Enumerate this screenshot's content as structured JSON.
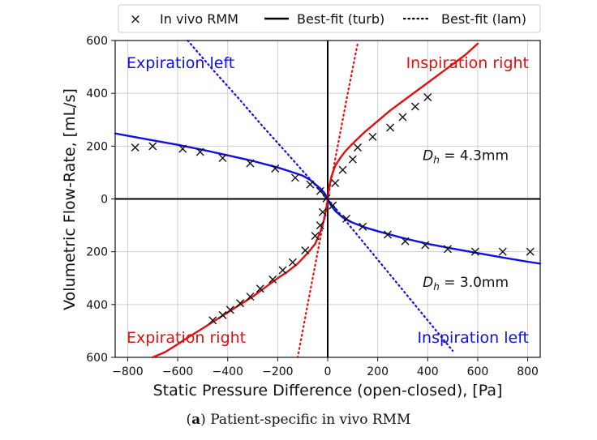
{
  "caption": {
    "letter": "a",
    "text": "Patient-specific in vivo RMM"
  },
  "chart_data": {
    "type": "scatter",
    "xlabel": "Static Pressure Difference (open-closed), [Pa]",
    "ylabel": "Volumetric Flow-Rate, [mL/s]",
    "xlim": [
      -850,
      850
    ],
    "ylim": [
      -600,
      600
    ],
    "grid": true,
    "xticks": [
      -800,
      -600,
      -400,
      -200,
      0,
      200,
      400,
      600,
      800
    ],
    "xtick_labels": [
      "−800",
      "−600",
      "−400",
      "−200",
      "0",
      "200",
      "400",
      "600",
      "800"
    ],
    "yticks": [
      600,
      400,
      200,
      0,
      -200,
      -400,
      -600
    ],
    "ytick_labels": [
      "600",
      "400",
      "200",
      "0",
      "200",
      "400",
      "600"
    ],
    "legend": {
      "position": "top",
      "entries": [
        {
          "marker": "×",
          "label": "In vivo RMM"
        },
        {
          "line": "solid",
          "label": "Best-fit (turb)"
        },
        {
          "line": "dotted",
          "label": "Best-fit (lam)"
        }
      ]
    },
    "colors": {
      "expiration_left": "#1010e0",
      "inspiration_right": "#e01010",
      "inspiration_left": "#1010e0",
      "expiration_right": "#e01010",
      "markers": "#111111"
    },
    "quadrant_labels": [
      {
        "text": "Expiration left",
        "color": "#1010e0",
        "corner": "top-left"
      },
      {
        "text": "Inspiration right",
        "color": "#e01010",
        "corner": "top-right"
      },
      {
        "text": "Expiration right",
        "color": "#e01010",
        "corner": "bottom-left"
      },
      {
        "text": "Inspiration left",
        "color": "#1010e0",
        "corner": "bottom-right"
      }
    ],
    "annotations": [
      {
        "sym": "D",
        "sub": "h",
        "rest": " = 4.3mm",
        "x": 380,
        "y": 165
      },
      {
        "sym": "D",
        "sub": "h",
        "rest": " = 3.0mm",
        "x": 380,
        "y": -315
      }
    ],
    "series": [
      {
        "name": "In vivo RMM (Expiration left / Inspiration right)",
        "kind": "markers",
        "x": [
          -770,
          -700,
          -580,
          -510,
          -420,
          -310,
          -210,
          -130,
          -70,
          -30,
          -5,
          30,
          60,
          100,
          120,
          180,
          250,
          300,
          350,
          400
        ],
        "y": [
          195,
          200,
          190,
          178,
          155,
          135,
          115,
          80,
          55,
          30,
          2,
          60,
          110,
          150,
          195,
          235,
          270,
          310,
          350,
          385
        ]
      },
      {
        "name": "In vivo RMM (Expiration right / Inspiration left)",
        "kind": "markers",
        "x": [
          -460,
          -420,
          -390,
          -350,
          -310,
          -270,
          -220,
          -180,
          -140,
          -90,
          -50,
          -30,
          -20,
          20,
          75,
          140,
          240,
          310,
          390,
          480,
          590,
          700,
          810
        ],
        "y": [
          -460,
          -440,
          -420,
          -395,
          -370,
          -340,
          -305,
          -270,
          -240,
          -195,
          -140,
          -100,
          -50,
          -25,
          -75,
          -105,
          -135,
          -160,
          -175,
          -190,
          -200,
          -200,
          -200
        ]
      },
      {
        "name": "Best-fit (turb) expiration left",
        "kind": "line",
        "style": "solid",
        "color": "#1010e0",
        "x": [
          -850,
          -700,
          -600,
          -500,
          -400,
          -300,
          -200,
          -150,
          -100,
          -70,
          -50,
          -30,
          -15,
          -5,
          0
        ],
        "y": [
          248,
          222,
          205,
          186,
          165,
          144,
          119,
          104,
          88,
          72,
          56,
          40,
          25,
          10,
          0
        ]
      },
      {
        "name": "Best-fit (turb) inspiration right",
        "kind": "line",
        "style": "solid",
        "color": "#e01010",
        "x": [
          0,
          5,
          15,
          30,
          50,
          70,
          100,
          150,
          200,
          250,
          300,
          350,
          400,
          450,
          500,
          550,
          600
        ],
        "y": [
          0,
          40,
          85,
          125,
          155,
          180,
          210,
          255,
          295,
          335,
          370,
          405,
          440,
          475,
          510,
          545,
          588
        ]
      },
      {
        "name": "Best-fit (turb) expiration right",
        "kind": "line",
        "style": "solid",
        "color": "#e01010",
        "x": [
          0,
          -5,
          -15,
          -30,
          -50,
          -80,
          -120,
          -160,
          -200,
          -250,
          -300,
          -350,
          -400,
          -450,
          -500,
          -560,
          -600,
          -650,
          -700
        ],
        "y": [
          0,
          -35,
          -80,
          -125,
          -170,
          -205,
          -245,
          -275,
          -300,
          -335,
          -370,
          -400,
          -430,
          -460,
          -490,
          -525,
          -550,
          -580,
          -600
        ]
      },
      {
        "name": "Best-fit (turb) inspiration left",
        "kind": "line",
        "style": "solid",
        "color": "#1010e0",
        "x": [
          0,
          10,
          30,
          60,
          100,
          150,
          200,
          300,
          400,
          500,
          600,
          700,
          800,
          850
        ],
        "y": [
          0,
          -20,
          -45,
          -70,
          -90,
          -108,
          -122,
          -148,
          -170,
          -188,
          -205,
          -222,
          -238,
          -245
        ]
      },
      {
        "name": "Best-fit (lam) expiration left",
        "kind": "line",
        "style": "dotted",
        "color": "#1010e0",
        "x": [
          -560,
          -460,
          -360,
          -260,
          -160,
          -80,
          0
        ],
        "y": [
          600,
          490,
          385,
          275,
          170,
          85,
          0
        ]
      },
      {
        "name": "Best-fit (lam) inspiration right",
        "kind": "line",
        "style": "dotted",
        "color": "#e01010",
        "x": [
          0,
          40,
          80,
          120
        ],
        "y": [
          0,
          200,
          400,
          590
        ]
      },
      {
        "name": "Best-fit (lam) expiration right",
        "kind": "line",
        "style": "dotted",
        "color": "#e01010",
        "x": [
          0,
          -40,
          -80,
          -120
        ],
        "y": [
          0,
          -200,
          -400,
          -600
        ]
      },
      {
        "name": "Best-fit (lam) inspiration left",
        "kind": "line",
        "style": "dotted",
        "color": "#1010e0",
        "x": [
          0,
          100,
          200,
          300,
          400,
          500
        ],
        "y": [
          0,
          -115,
          -230,
          -345,
          -460,
          -575
        ]
      }
    ]
  }
}
